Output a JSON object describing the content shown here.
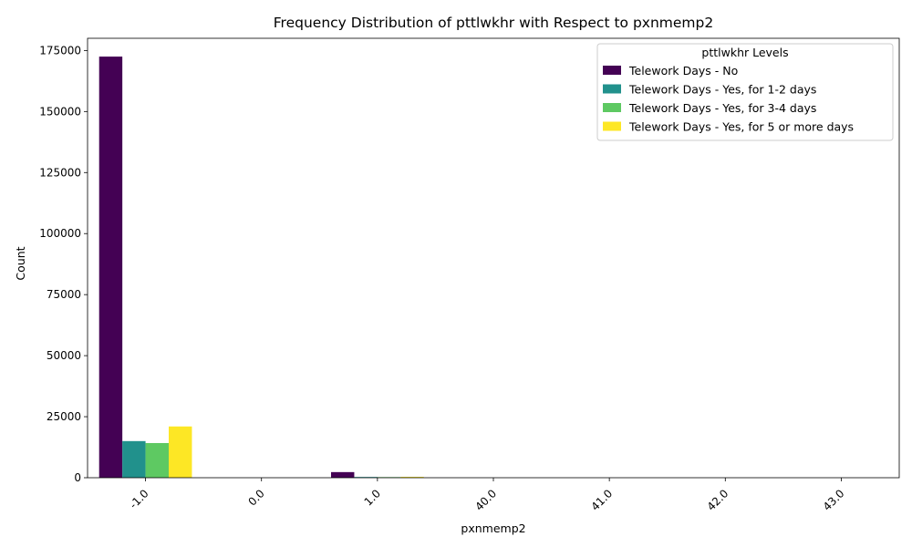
{
  "chart_data": {
    "type": "bar",
    "title": "Frequency Distribution of pttlwkhr with Respect to pxnmemp2",
    "xlabel": "pxnmemp2",
    "ylabel": "Count",
    "categories": [
      "-1.0",
      "0.0",
      "1.0",
      "40.0",
      "41.0",
      "42.0",
      "43.0"
    ],
    "ylim": [
      0,
      180000
    ],
    "yticks": [
      0,
      25000,
      50000,
      75000,
      100000,
      125000,
      150000,
      175000
    ],
    "legend": {
      "title": "pttlwkhr Levels",
      "placement": "top-right"
    },
    "series": [
      {
        "name": "Telework Days - No",
        "color": "#440154",
        "values": [
          172500,
          0,
          2300,
          0,
          0,
          0,
          0
        ]
      },
      {
        "name": "Telework Days - Yes, for 1-2 days",
        "color": "#21918c",
        "values": [
          15000,
          0,
          300,
          0,
          0,
          0,
          0
        ]
      },
      {
        "name": "Telework Days - Yes, for 3-4 days",
        "color": "#5ec962",
        "values": [
          14200,
          0,
          250,
          0,
          0,
          0,
          0
        ]
      },
      {
        "name": "Telework Days - Yes, for 5 or more days",
        "color": "#fde725",
        "values": [
          21000,
          0,
          350,
          0,
          0,
          0,
          0
        ]
      }
    ],
    "grid": false
  }
}
